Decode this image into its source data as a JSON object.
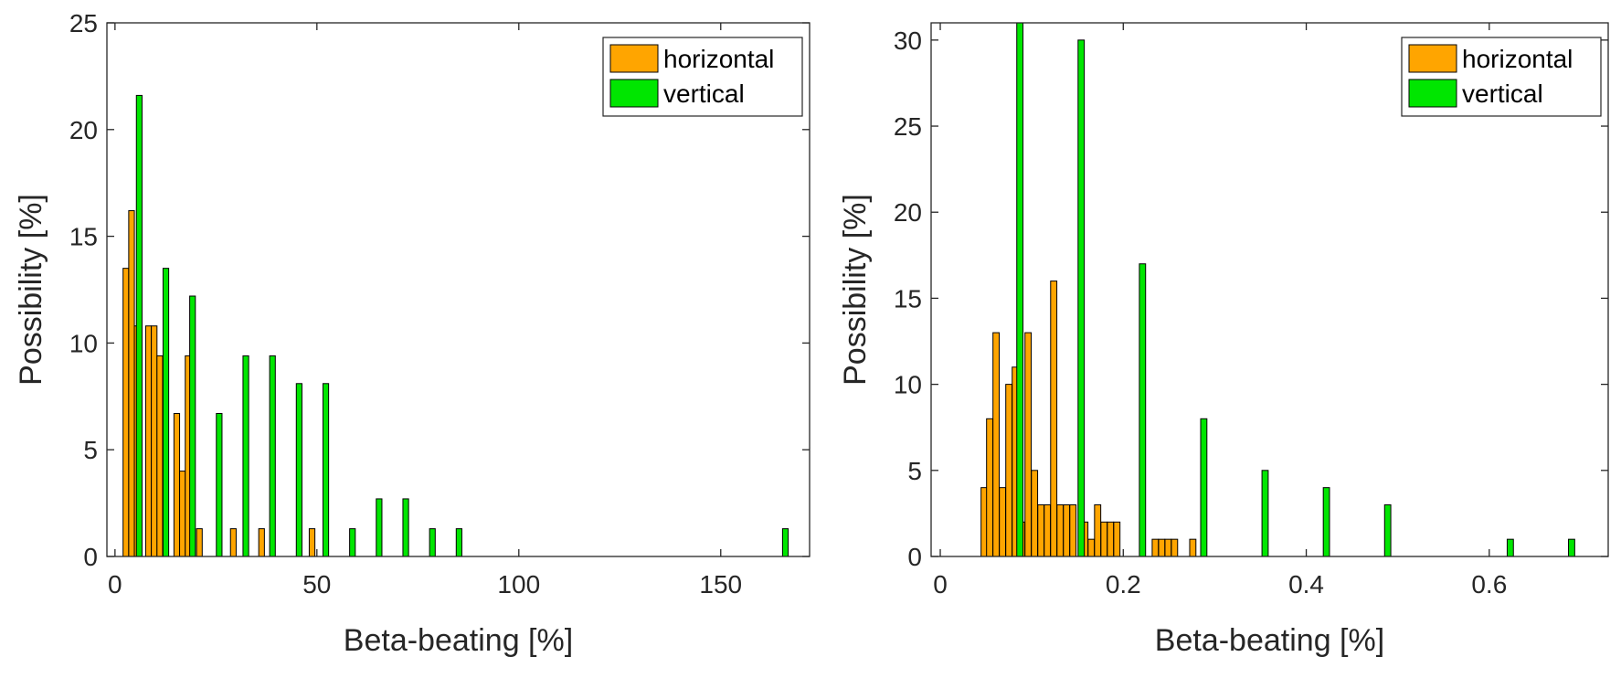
{
  "chart_data": [
    {
      "type": "bar",
      "xlabel": "Beta-beating [%]",
      "ylabel": "Possibility [%]",
      "xlim": [
        -2,
        172
      ],
      "ylim": [
        0,
        25
      ],
      "xticks": [
        0,
        50,
        100,
        150
      ],
      "yticks": [
        0,
        5,
        10,
        15,
        20,
        25
      ],
      "legend_placement": "top-right",
      "grid": false,
      "bin_width": 1.4,
      "series": [
        {
          "name": "horizontal",
          "color": "#FFA500",
          "x": [
            2.7,
            4.1,
            5.5,
            8.3,
            9.7,
            11.1,
            12.5,
            15.3,
            16.7,
            18.1,
            20.9,
            29.3,
            36.3,
            48.8
          ],
          "values": [
            13.5,
            16.2,
            10.8,
            10.8,
            10.8,
            9.4,
            8.1,
            6.7,
            4.0,
            9.4,
            1.3,
            1.3,
            1.3,
            1.3
          ]
        },
        {
          "name": "vertical",
          "color": "#00E600",
          "x": [
            6.0,
            12.6,
            19.2,
            25.8,
            32.4,
            39.0,
            45.6,
            52.2,
            58.8,
            65.4,
            72.0,
            78.6,
            85.2,
            166.0
          ],
          "values": [
            21.6,
            13.5,
            12.2,
            6.7,
            9.4,
            9.4,
            8.1,
            8.1,
            1.3,
            2.7,
            2.7,
            1.3,
            1.3,
            1.3
          ]
        }
      ]
    },
    {
      "type": "bar",
      "xlabel": "Beta-beating [%]",
      "ylabel": "Possibility [%]",
      "xlim": [
        -0.01,
        0.73
      ],
      "ylim": [
        0,
        31
      ],
      "xticks": [
        0,
        0.2,
        0.4,
        0.6
      ],
      "yticks": [
        0,
        5,
        10,
        15,
        20,
        25,
        30
      ],
      "legend_placement": "top-right",
      "grid": false,
      "bin_width": 0.0068,
      "series": [
        {
          "name": "horizontal",
          "color": "#FFA500",
          "x": [
            0.048,
            0.054,
            0.061,
            0.068,
            0.075,
            0.082,
            0.089,
            0.096,
            0.103,
            0.11,
            0.117,
            0.124,
            0.131,
            0.138,
            0.145,
            0.158,
            0.165,
            0.172,
            0.179,
            0.186,
            0.193,
            0.235,
            0.242,
            0.249,
            0.256,
            0.276
          ],
          "values": [
            4,
            8,
            13,
            4,
            10,
            11,
            2,
            13,
            5,
            3,
            3,
            16,
            3,
            3,
            3,
            2,
            1,
            3,
            2,
            2,
            2,
            1,
            1,
            1,
            1,
            1
          ]
        },
        {
          "name": "vertical",
          "color": "#00E600",
          "x": [
            0.087,
            0.154,
            0.221,
            0.288,
            0.355,
            0.422,
            0.489,
            0.623,
            0.69
          ],
          "values": [
            31,
            30,
            17,
            8,
            5,
            4,
            3,
            1,
            1
          ]
        }
      ]
    }
  ]
}
